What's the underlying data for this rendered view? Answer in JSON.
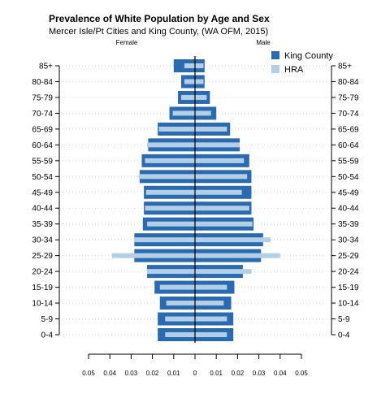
{
  "chart_data": {
    "type": "bar",
    "subtype": "population-pyramid",
    "title": "Prevalence of White Population by Age and Sex",
    "subtitle": "Mercer Isle/Pt Cities and King County, (WA OFM, 2015)",
    "left_label": "Female",
    "right_label": "Male",
    "categories": [
      "0-4",
      "5-9",
      "10-14",
      "15-19",
      "20-24",
      "25-29",
      "30-34",
      "35-39",
      "40-44",
      "45-49",
      "50-54",
      "55-59",
      "60-64",
      "65-69",
      "70-74",
      "75-79",
      "80-84",
      "85+"
    ],
    "x_ticks": [
      "0.05",
      "0.04",
      "0.03",
      "0.02",
      "0.01",
      "0",
      "0.01",
      "0.02",
      "0.03",
      "0.04",
      "0.05"
    ],
    "xlim": [
      -0.05,
      0.05
    ],
    "grid": "horizontal dotted",
    "legend_position": "top-right",
    "series": [
      {
        "name": "King County",
        "color": "#2a6ab0",
        "female": [
          0.0175,
          0.0175,
          0.0165,
          0.019,
          0.0225,
          0.0285,
          0.0285,
          0.0245,
          0.024,
          0.024,
          0.026,
          0.025,
          0.022,
          0.0175,
          0.012,
          0.008,
          0.0065,
          0.01
        ],
        "male": [
          0.018,
          0.018,
          0.017,
          0.0185,
          0.0225,
          0.031,
          0.032,
          0.0275,
          0.0265,
          0.0265,
          0.0265,
          0.0255,
          0.021,
          0.0165,
          0.01,
          0.007,
          0.0045,
          0.0045
        ]
      },
      {
        "name": "HRA",
        "color": "#b3cfe6",
        "female": [
          0.014,
          0.014,
          0.0135,
          0.0165,
          0.0225,
          0.039,
          0.0285,
          0.0225,
          0.0235,
          0.023,
          0.0265,
          0.0235,
          0.0225,
          0.017,
          0.0105,
          0.0065,
          0.005,
          0.005
        ],
        "male": [
          0.015,
          0.015,
          0.0135,
          0.015,
          0.0265,
          0.04,
          0.0355,
          0.027,
          0.0255,
          0.022,
          0.0245,
          0.023,
          0.021,
          0.015,
          0.0075,
          0.0055,
          0.004,
          0.004
        ]
      }
    ]
  }
}
